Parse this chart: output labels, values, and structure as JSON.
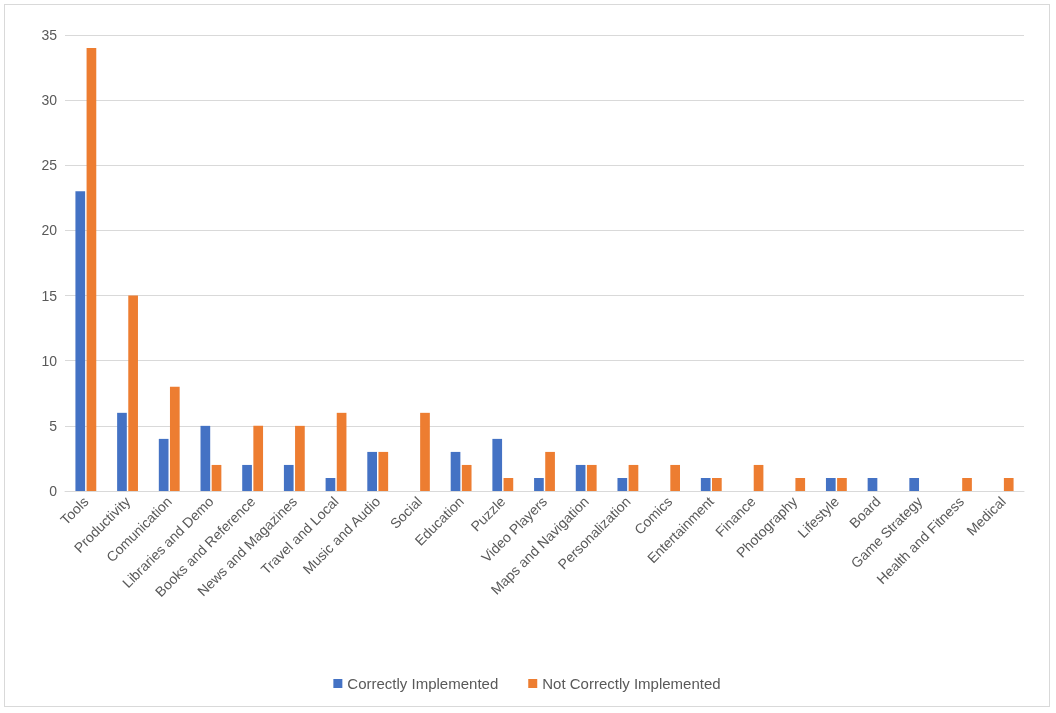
{
  "chart_data": {
    "type": "bar",
    "categories": [
      "Tools",
      "Productivity",
      "Comunication",
      "Libraries and Demo",
      "Books and Reference",
      "News and Magazines",
      "Travel and Local",
      "Music and Audio",
      "Social",
      "Education",
      "Puzzle",
      "Video Players",
      "Maps and Navigation",
      "Personalization",
      "Comics",
      "Entertainment",
      "Finance",
      "Photography",
      "Lifestyle",
      "Board",
      "Game Strategy",
      "Health and Fitness",
      "Medical"
    ],
    "series": [
      {
        "name": "Correctly Implemented",
        "color": "#4472c4",
        "values": [
          23,
          6,
          4,
          5,
          2,
          2,
          1,
          3,
          0,
          3,
          4,
          1,
          2,
          1,
          0,
          1,
          0,
          0,
          1,
          1,
          1,
          0,
          0
        ]
      },
      {
        "name": "Not Correctly Implemented",
        "color": "#ed7d31",
        "values": [
          34,
          15,
          8,
          2,
          5,
          5,
          6,
          3,
          6,
          2,
          1,
          3,
          2,
          2,
          2,
          1,
          2,
          1,
          1,
          0,
          0,
          1,
          1
        ]
      }
    ],
    "ylim": [
      0,
      35
    ],
    "yticks": [
      0,
      5,
      10,
      15,
      20,
      25,
      30,
      35
    ],
    "grid": "y",
    "legend": "bottom"
  }
}
